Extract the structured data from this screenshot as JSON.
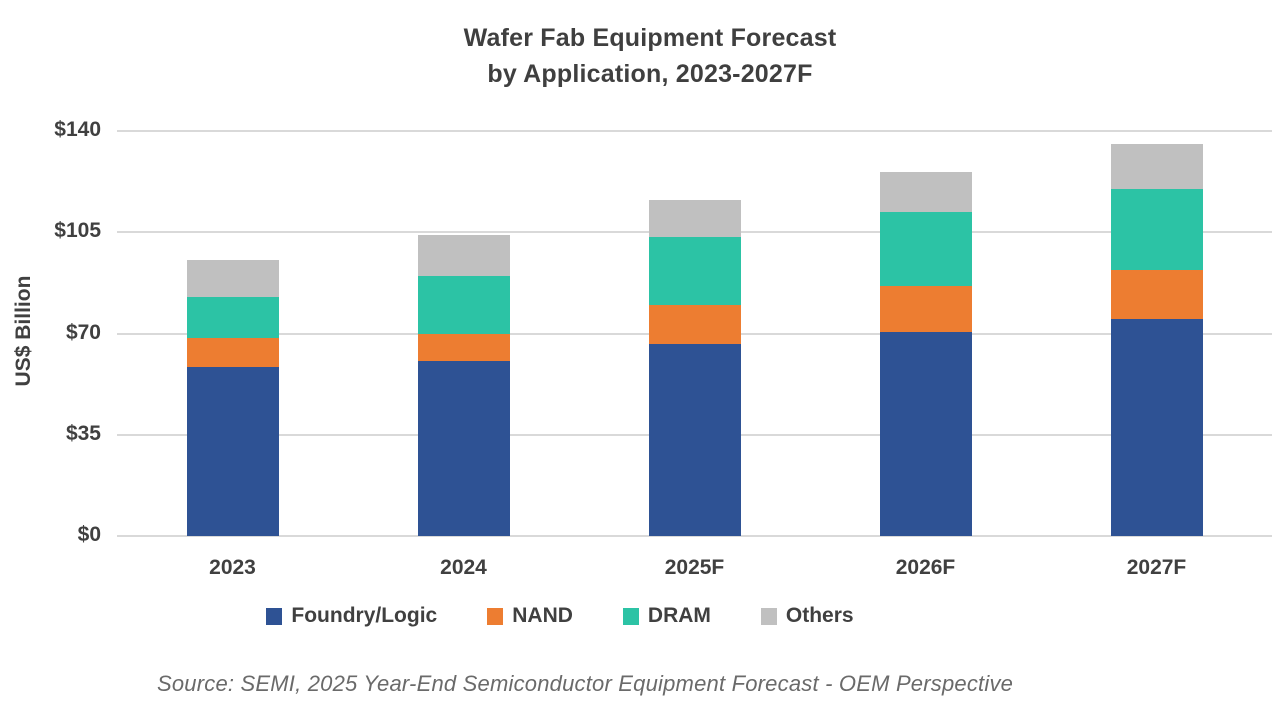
{
  "title": {
    "line1": "Wafer Fab Equipment Forecast",
    "line2": "by Application, 2023-2027F"
  },
  "y_axis": {
    "label": "US$ Billion",
    "ticks": [
      {
        "label": "$140",
        "value": 140
      },
      {
        "label": "$105",
        "value": 105
      },
      {
        "label": "$70",
        "value": 70
      },
      {
        "label": "$35",
        "value": 35
      },
      {
        "label": "$0",
        "value": 0
      }
    ]
  },
  "source": "Source: SEMI, 2025 Year-End Semiconductor Equipment Forecast - OEM Perspective",
  "colors": {
    "foundry_logic": "#2e5294",
    "nand": "#ed7d31",
    "dram": "#2cc3a5",
    "others": "#c0c0c0",
    "gridline": "#d9d9d9",
    "text": "#404040"
  },
  "chart_data": {
    "type": "bar",
    "stacked": true,
    "title": "Wafer Fab Equipment Forecast by Application, 2023-2027F",
    "xlabel": "",
    "ylabel": "US$ Billion",
    "ylim": [
      0,
      140
    ],
    "grid": true,
    "legend_position": "bottom",
    "categories": [
      "2023",
      "2024",
      "2025F",
      "2026F",
      "2027F"
    ],
    "series": [
      {
        "name": "Foundry/Logic",
        "color": "#2e5294",
        "values": [
          58.5,
          60.5,
          66.5,
          70.5,
          75
        ]
      },
      {
        "name": "NAND",
        "color": "#ed7d31",
        "values": [
          10,
          9.5,
          13.5,
          16,
          17
        ]
      },
      {
        "name": "DRAM",
        "color": "#2cc3a5",
        "values": [
          14,
          20,
          23.5,
          25.5,
          28
        ]
      },
      {
        "name": "Others",
        "color": "#c0c0c0",
        "values": [
          13,
          14,
          12.5,
          14,
          15.5
        ]
      }
    ],
    "totals": [
      95.5,
      104,
      116,
      126,
      135.5
    ]
  }
}
